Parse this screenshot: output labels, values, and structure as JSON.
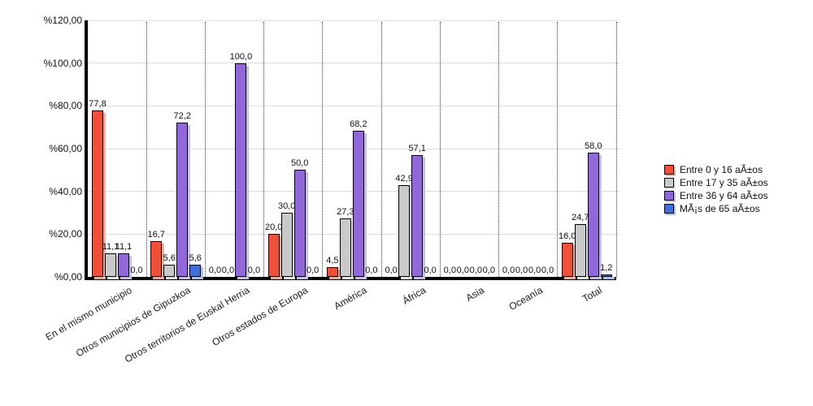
{
  "chart_data": {
    "type": "bar",
    "title": "",
    "xlabel": "",
    "ylabel": "",
    "ylim": [
      0,
      120
    ],
    "y_ticks": [
      0,
      20,
      40,
      60,
      80,
      100,
      120
    ],
    "y_tick_labels": [
      "%0,00",
      "%20,00",
      "%40,00",
      "%60,00",
      "%80,00",
      "%100,00",
      "%120,00"
    ],
    "grid": true,
    "legend_position": "right",
    "categories": [
      "En el mismo municipio",
      "Otros municipios de Gipuzkoa",
      "Otros territorios de Euskal Herria",
      "Otros estados de Europa",
      "América",
      "África",
      "Asia",
      "Oceanía",
      "Total"
    ],
    "series": [
      {
        "name": "Entre 0 y 16 aÃ±os",
        "color": "#f0503a",
        "shadow_color": "#f8a895",
        "values": [
          77.8,
          16.7,
          0.0,
          20.0,
          4.5,
          0.0,
          0.0,
          0.0,
          16.0
        ],
        "labels": [
          "77,8",
          "16,7",
          "0,0",
          "20,0",
          "4,5",
          "0,0",
          "0,0",
          "0,0",
          "16,0"
        ]
      },
      {
        "name": "Entre 17 y 35 aÃ±os",
        "color": "#c9c9c9",
        "shadow_color": "#e4e4e4",
        "values": [
          11.1,
          5.6,
          0.0,
          30.0,
          27.3,
          42.9,
          0.0,
          0.0,
          24.7
        ],
        "labels": [
          "11,1",
          "5,6",
          "0,0",
          "30,0",
          "27,3",
          "42,9",
          "0,0",
          "0,0",
          "24,7"
        ]
      },
      {
        "name": "Entre 36 y 64 aÃ±os",
        "color": "#9168d9",
        "shadow_color": "#cbbcee",
        "values": [
          11.1,
          72.2,
          100.0,
          50.0,
          68.2,
          57.1,
          0.0,
          0.0,
          58.0
        ],
        "labels": [
          "11,1",
          "72,2",
          "100,0",
          "50,0",
          "68,2",
          "57,1",
          "0,0",
          "0,0",
          "58,0"
        ]
      },
      {
        "name": "MÃ¡s de 65 aÃ±os",
        "color": "#4070d8",
        "shadow_color": "#a9c0f0",
        "values": [
          0.0,
          5.6,
          0.0,
          0.0,
          0.0,
          0.0,
          0.0,
          0.0,
          1.2
        ],
        "labels": [
          "0,0",
          "5,6",
          "0,0",
          "0,0",
          "0,0",
          "0,0",
          "0,0",
          "0,0",
          "1,2"
        ]
      }
    ]
  }
}
